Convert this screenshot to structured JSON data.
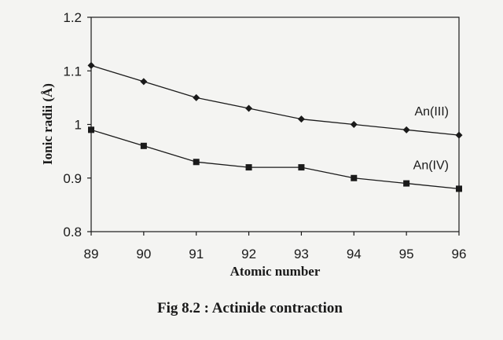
{
  "chart_data": {
    "type": "line",
    "xlabel": "Atomic number",
    "ylabel": "Ionic radii (Å)",
    "caption": "Fig 8.2 : Actinide contraction",
    "x": [
      89,
      90,
      91,
      92,
      93,
      94,
      95,
      96
    ],
    "xlim": [
      89,
      96
    ],
    "ylim": [
      0.8,
      1.2
    ],
    "x_ticks": [
      "89",
      "90",
      "91",
      "92",
      "93",
      "94",
      "95",
      "96"
    ],
    "y_ticks": [
      "0.8",
      "0.9",
      "1",
      "1.1",
      "1.2"
    ],
    "grid": false,
    "series": [
      {
        "name": "An(III)",
        "marker": "diamond",
        "values": [
          1.11,
          1.08,
          1.05,
          1.03,
          1.01,
          1.0,
          0.99,
          0.98
        ]
      },
      {
        "name": "An(IV)",
        "marker": "square",
        "values": [
          0.99,
          0.96,
          0.93,
          0.92,
          0.92,
          0.9,
          0.89,
          0.88
        ]
      }
    ],
    "colors": {
      "line": "#1a1a1a",
      "axis": "#1a1a1a"
    }
  }
}
